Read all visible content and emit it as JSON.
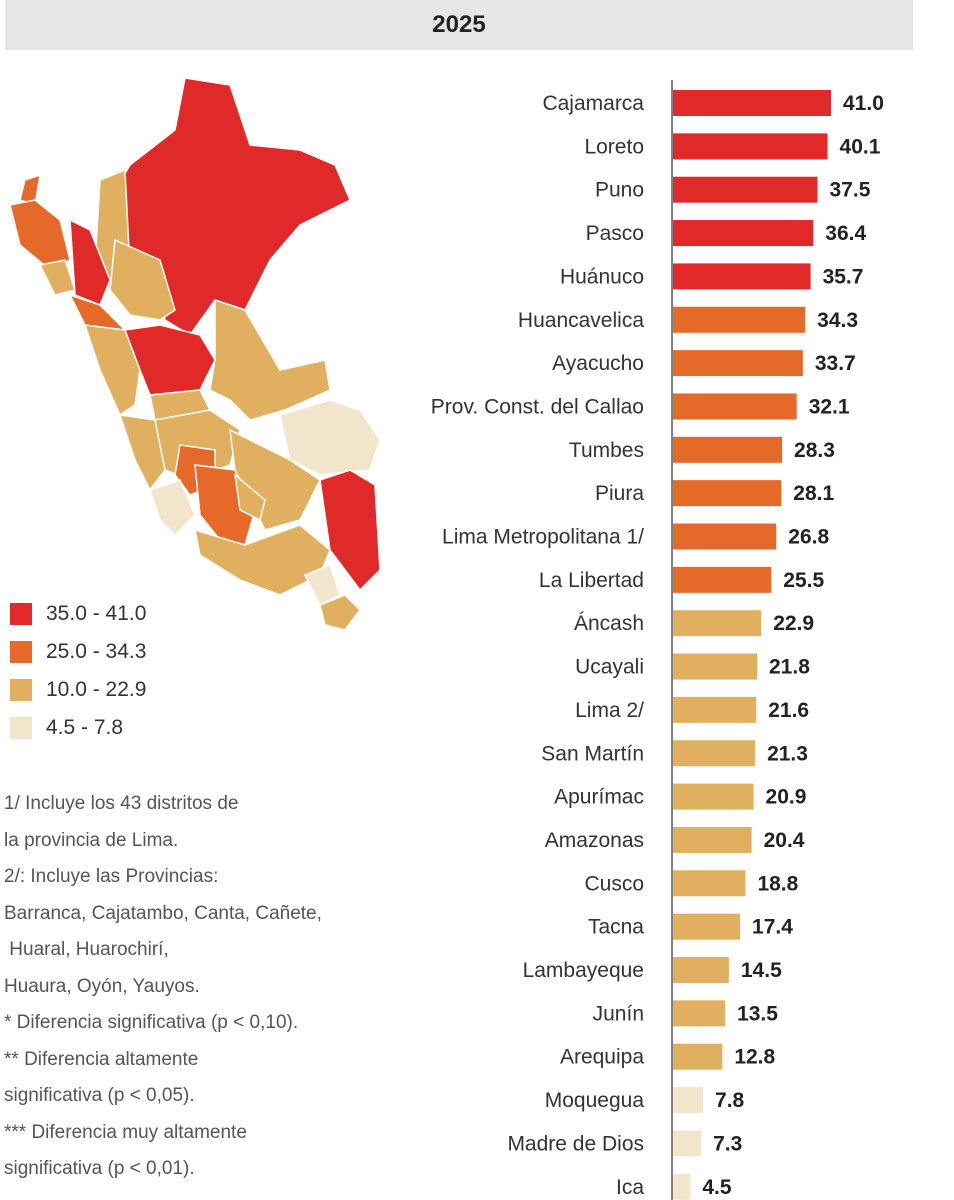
{
  "header": {
    "year": "2025"
  },
  "chart_data": {
    "type": "bar",
    "orientation": "horizontal",
    "title": "2025",
    "categories": [
      "Cajamarca",
      "Loreto",
      "Puno",
      "Pasco",
      "Huánuco",
      "Huancavelica",
      "Ayacucho",
      "Prov. Const. del Callao",
      "Tumbes",
      "Piura",
      "Lima Metropolitana 1/",
      "La Libertad",
      "Áncash",
      "Ucayali",
      "Lima 2/",
      "San Martín",
      "Apurímac",
      "Amazonas",
      "Cusco",
      "Tacna",
      "Lambayeque",
      "Junín",
      "Arequipa",
      "Moquegua",
      "Madre de Dios",
      "Ica"
    ],
    "values": [
      41.0,
      40.1,
      37.5,
      36.4,
      35.7,
      34.3,
      33.7,
      32.1,
      28.3,
      28.1,
      26.8,
      25.5,
      22.9,
      21.8,
      21.6,
      21.3,
      20.9,
      20.4,
      18.8,
      17.4,
      14.5,
      13.5,
      12.8,
      7.8,
      7.3,
      4.5
    ],
    "value_labels": [
      "41.0",
      "40.1",
      "37.5",
      "36.4",
      "35.7",
      "34.3",
      "33.7",
      "32.1",
      "28.3",
      "28.1",
      "26.8",
      "25.5",
      "22.9",
      "21.8",
      "21.6",
      "21.3",
      "20.9",
      "20.4",
      "18.8",
      "17.4",
      "14.5",
      "13.5",
      "12.8",
      "7.8",
      "7.3",
      "4.5"
    ],
    "xlim": [
      0,
      41.0
    ],
    "color_bins": [
      {
        "label": "35.0 - 41.0",
        "min": 35.0,
        "color": "#e02a2a"
      },
      {
        "label": "25.0 - 34.3",
        "min": 25.0,
        "color": "#e56a2a"
      },
      {
        "label": "10.0 - 22.9",
        "min": 10.0,
        "color": "#e0b060"
      },
      {
        "label": "4.5 - 7.8",
        "min": 0,
        "color": "#f3e4cc"
      }
    ],
    "grid": false
  },
  "legend": {
    "items": [
      {
        "label": "35.0 - 41.0",
        "color": "#e02a2a"
      },
      {
        "label": "25.0 - 34.3",
        "color": "#e56a2a"
      },
      {
        "label": "10.0 - 22.9",
        "color": "#e0b060"
      },
      {
        "label": "4.5 - 7.8",
        "color": "#f3e4cc"
      }
    ]
  },
  "notes": [
    "1/ Incluye los 43 distritos de",
    "la provincia de Lima.",
    "2/: Incluye las Provincias:",
    "Barranca, Cajatambo, Canta, Cañete,",
    " Huaral, Huarochirí,",
    "Huaura, Oyón, Yauyos.",
    "* Diferencia significativa (p < 0,10).",
    "** Diferencia altamente",
    "significativa (p < 0,05).",
    "*** Diferencia muy altamente",
    "significativa (p < 0,01)."
  ]
}
